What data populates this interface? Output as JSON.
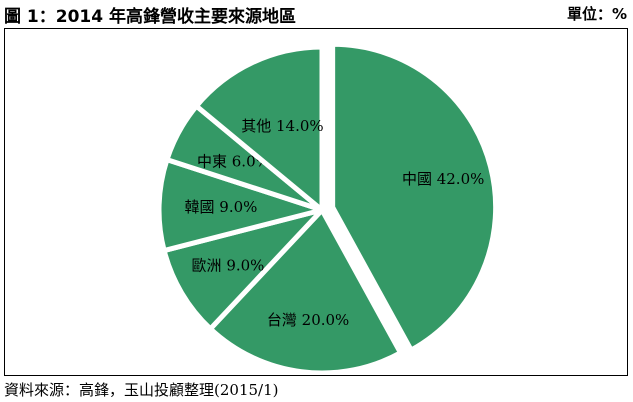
{
  "header": {
    "title": "圖 1：2014 年高鋒營收主要來源地區",
    "unit": "單位：%"
  },
  "footer": {
    "source": "資料來源：高鋒，玉山投顧整理(2015/1)"
  },
  "chart_data": {
    "type": "pie",
    "title": "圖 1：2014 年高鋒營收主要來源地區",
    "unit": "%",
    "slices": [
      {
        "label": "中國",
        "value": 42.0,
        "text": "中國 42.0%"
      },
      {
        "label": "台灣",
        "value": 20.0,
        "text": "台灣 20.0%"
      },
      {
        "label": "歐洲",
        "value": 9.0,
        "text": "歐洲 9.0%"
      },
      {
        "label": "韓國",
        "value": 9.0,
        "text": "韓國 9.0%"
      },
      {
        "label": "中東",
        "value": 6.0,
        "text": "中東 6.0%"
      },
      {
        "label": "其他",
        "value": 14.0,
        "text": "其他 14.0%"
      }
    ],
    "colors": {
      "fill": "#349966",
      "separator": "#ffffff"
    }
  }
}
